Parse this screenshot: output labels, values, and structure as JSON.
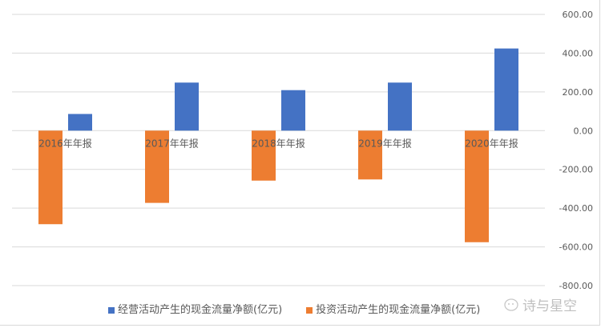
{
  "chart_data": {
    "type": "bar",
    "categories": [
      "2016年年报",
      "2017年年报",
      "2018年年报",
      "2019年年报",
      "2020年年报"
    ],
    "series": [
      {
        "name": "经营活动产生的现金流量净额(亿元)",
        "color": "#4472c4",
        "values": [
          86,
          248,
          209,
          248,
          424
        ]
      },
      {
        "name": "投资活动产生的现金流量净额(亿元)",
        "color": "#ed7d31",
        "values": [
          -483,
          -373,
          -258,
          -252,
          -576
        ]
      }
    ],
    "ylim": [
      -800,
      600
    ],
    "yticks": [
      "600.00",
      "400.00",
      "200.00",
      "0.00",
      "-200.00",
      "-400.00",
      "-600.00",
      "-800.00"
    ],
    "ytick_values": [
      600,
      400,
      200,
      0,
      -200,
      -400,
      -600,
      -800
    ],
    "y_axis_position": "right",
    "grid": true,
    "legend_position": "bottom"
  },
  "watermark": "诗与星空"
}
